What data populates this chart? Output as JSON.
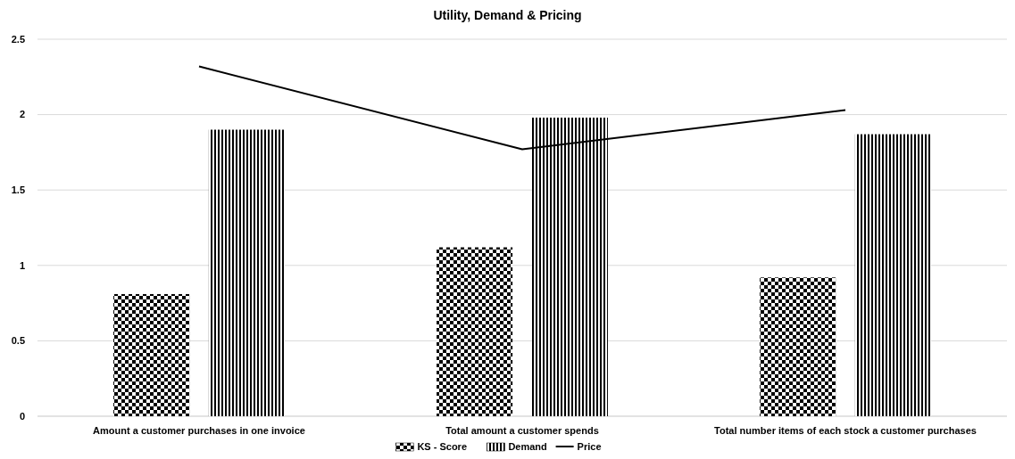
{
  "chart_data": {
    "type": "bar",
    "title": "Utility, Demand & Pricing",
    "categories": [
      "Amount a customer purchases in one invoice",
      "Total amount a customer spends",
      "Total number items of each stock a customer purchases"
    ],
    "series": [
      {
        "name": "KS - Score",
        "color": "#000000",
        "values": [
          0.81,
          1.12,
          0.92
        ]
      },
      {
        "name": "Demand",
        "color": "#000000",
        "values": [
          1.9,
          1.98,
          1.87
        ]
      },
      {
        "name": "Price",
        "type": "line",
        "color": "#000000",
        "values": [
          2.32,
          1.77,
          2.03
        ]
      }
    ],
    "ylim": [
      0,
      2.5
    ],
    "yticks": [
      0,
      0.5,
      1,
      1.5,
      2,
      2.5
    ],
    "grid": "y",
    "legend": "bottom"
  }
}
